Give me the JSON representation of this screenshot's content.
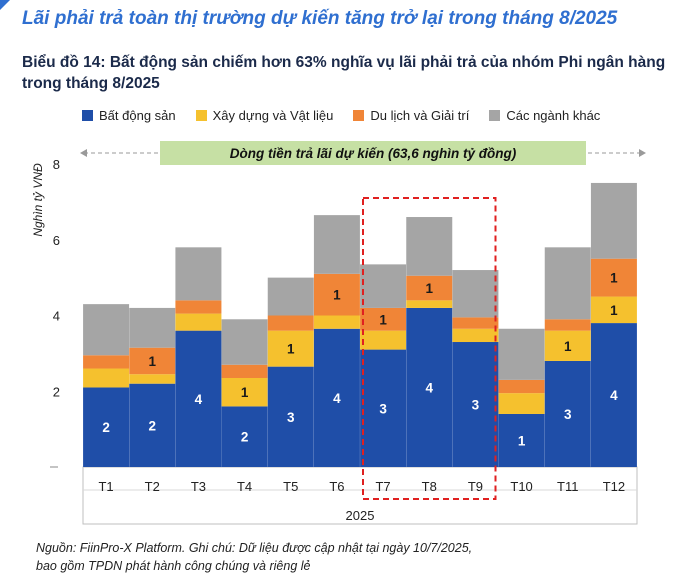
{
  "headline": "Lãi phải trả toàn thị trường dự kiến tăng trở lại trong tháng 8/2025",
  "subtitle": "Biểu đồ 14: Bất động sản chiếm hơn 63% nghĩa vụ lãi phải trả của nhóm Phi ngân hàng trong tháng 8/2025",
  "banner_text": "Dòng tiền trả lãi dự kiến (63,6 nghìn tỷ đồng)",
  "footer_line1": "Nguồn: FiinPro-X Platform. Ghi chú: Dữ liệu được cập nhật tại ngày 10/7/2025,",
  "footer_line2": "bao gồm TPDN phát hành công chúng và riêng lẻ",
  "colors": {
    "headline": "#2f6fd0",
    "banner_bg": "#c6e0a4",
    "highlight_border": "#e02020"
  },
  "chart_data": {
    "type": "bar",
    "stacked": true,
    "categories": [
      "T1",
      "T2",
      "T3",
      "T4",
      "T5",
      "T6",
      "T7",
      "T8",
      "T9",
      "T10",
      "T11",
      "T12"
    ],
    "xlabel": "2025",
    "ylabel": "Nghìn tỷ VNĐ",
    "ylim": [
      0,
      8
    ],
    "yticks": [
      2,
      4,
      6,
      8
    ],
    "highlighted_categories": [
      "T7",
      "T8",
      "T9"
    ],
    "series": [
      {
        "name": "Bất động sản",
        "color": "#1f4ea8",
        "values": [
          2.1,
          2.2,
          3.6,
          1.6,
          2.65,
          3.65,
          3.1,
          4.2,
          3.3,
          1.4,
          2.8,
          3.8
        ],
        "labels": [
          "2",
          "2",
          "4",
          "2",
          "3",
          "4",
          "3",
          "4",
          "3",
          "1",
          "3",
          "4"
        ]
      },
      {
        "name": "Xây dựng và Vật liệu",
        "color": "#f5c12e",
        "values": [
          0.5,
          0.25,
          0.45,
          0.75,
          0.95,
          0.35,
          0.5,
          0.2,
          0.35,
          0.55,
          0.8,
          0.7
        ],
        "labels": [
          "",
          "",
          "",
          "1",
          "1",
          "",
          "",
          "",
          "",
          "",
          "1",
          "1"
        ]
      },
      {
        "name": "Du lịch và Giải trí",
        "color": "#f08537",
        "values": [
          0.35,
          0.7,
          0.35,
          0.35,
          0.4,
          1.1,
          0.6,
          0.65,
          0.3,
          0.35,
          0.3,
          1.0
        ],
        "labels": [
          "",
          "1",
          "",
          "",
          "",
          "1",
          "1",
          "1",
          "",
          "",
          "",
          "1"
        ]
      },
      {
        "name": "Các ngành khác",
        "color": "#a5a5a5",
        "values": [
          1.35,
          1.05,
          1.4,
          1.2,
          1.0,
          1.55,
          1.15,
          1.55,
          1.25,
          1.35,
          1.9,
          2.0
        ],
        "labels": [
          "",
          "",
          "",
          "",
          "",
          "",
          "",
          "",
          "",
          "",
          "",
          ""
        ]
      }
    ]
  }
}
